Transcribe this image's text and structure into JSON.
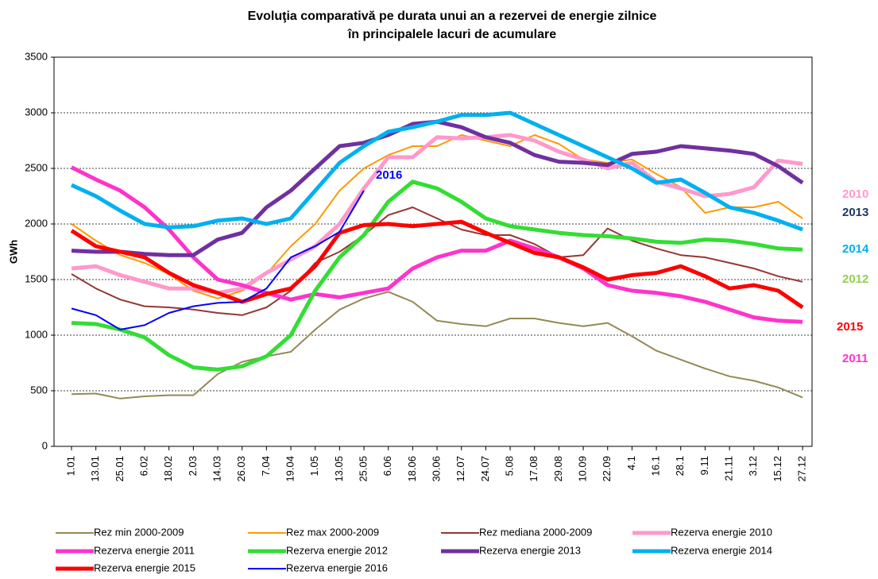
{
  "chart_data": {
    "type": "line",
    "title": "Evoluţia comparativă pe durata unui an a rezervei de energie zilnice",
    "subtitle": "în principalele lacuri de acumulare",
    "y_label": "GWh",
    "categories": [
      "1.01",
      "13.01",
      "25.01",
      "6.02",
      "18.02",
      "2.03",
      "14.03",
      "26.03",
      "7.04",
      "19.04",
      "1.05",
      "13.05",
      "25.05",
      "6.06",
      "18.06",
      "30.06",
      "12.07",
      "24.07",
      "5.08",
      "17.08",
      "29.08",
      "10.09",
      "22.09",
      "4.1",
      "16.1",
      "28.1",
      "9.11",
      "21.11",
      "3.12",
      "15.12",
      "27.12"
    ],
    "ylim": [
      0,
      3500
    ],
    "yticks": [
      0,
      500,
      1000,
      1500,
      2000,
      2500,
      3000,
      3500
    ],
    "grid": true,
    "series": [
      {
        "name": "Rez min 2000-2009",
        "color": "#948a54",
        "values": [
          470,
          475,
          430,
          450,
          460,
          460,
          650,
          760,
          810,
          850,
          1050,
          1230,
          1330,
          1390,
          1300,
          1130,
          1100,
          1080,
          1150,
          1150,
          1110,
          1080,
          1110,
          990,
          860,
          780,
          700,
          630,
          590,
          530,
          440
        ]
      },
      {
        "name": "Rez max 2000-2009",
        "color": "#ff9900",
        "values": [
          2000,
          1850,
          1720,
          1650,
          1550,
          1400,
          1330,
          1400,
          1550,
          1800,
          2000,
          2300,
          2500,
          2620,
          2700,
          2700,
          2800,
          2750,
          2700,
          2800,
          2720,
          2580,
          2550,
          2580,
          2450,
          2330,
          2100,
          2150,
          2150,
          2200,
          2050
        ]
      },
      {
        "name": "Rez mediana 2000-2009",
        "color": "#953735",
        "values": [
          1550,
          1420,
          1320,
          1260,
          1250,
          1230,
          1200,
          1180,
          1250,
          1400,
          1650,
          1750,
          1900,
          2080,
          2150,
          2050,
          1950,
          1900,
          1900,
          1820,
          1700,
          1720,
          1960,
          1850,
          1780,
          1720,
          1700,
          1650,
          1600,
          1530,
          1480
        ]
      },
      {
        "name": "Rezerva energie 2010",
        "color": "#ff99cc",
        "values": [
          1600,
          1620,
          1540,
          1480,
          1420,
          1420,
          1380,
          1420,
          1560,
          1680,
          1800,
          2000,
          2320,
          2600,
          2600,
          2780,
          2770,
          2780,
          2800,
          2750,
          2650,
          2580,
          2500,
          2550,
          2380,
          2320,
          2250,
          2270,
          2330,
          2570,
          2540
        ]
      },
      {
        "name": "Rezerva energie 2011",
        "color": "#ff33cc",
        "values": [
          2510,
          2400,
          2300,
          2150,
          1950,
          1700,
          1500,
          1450,
          1380,
          1320,
          1370,
          1340,
          1380,
          1420,
          1600,
          1700,
          1760,
          1760,
          1850,
          1780,
          1700,
          1600,
          1450,
          1400,
          1380,
          1350,
          1300,
          1230,
          1160,
          1130,
          1120
        ]
      },
      {
        "name": "Rezerva energie 2012",
        "color": "#33dd33",
        "values": [
          1110,
          1100,
          1050,
          980,
          820,
          710,
          690,
          720,
          810,
          1000,
          1400,
          1700,
          1900,
          2200,
          2380,
          2320,
          2200,
          2050,
          1980,
          1950,
          1920,
          1900,
          1890,
          1870,
          1840,
          1830,
          1860,
          1850,
          1820,
          1780,
          1770
        ]
      },
      {
        "name": "Rezerva energie 2013",
        "color": "#7030a0",
        "values": [
          1760,
          1750,
          1750,
          1730,
          1720,
          1720,
          1860,
          1920,
          2150,
          2300,
          2500,
          2700,
          2730,
          2800,
          2900,
          2920,
          2870,
          2780,
          2730,
          2620,
          2560,
          2550,
          2530,
          2630,
          2650,
          2700,
          2680,
          2660,
          2630,
          2520,
          2370
        ]
      },
      {
        "name": "Rezerva energie 2014",
        "color": "#00b0f0",
        "values": [
          2350,
          2250,
          2120,
          2000,
          1970,
          1980,
          2030,
          2050,
          2000,
          2050,
          2300,
          2550,
          2700,
          2830,
          2870,
          2920,
          2980,
          2980,
          3000,
          2900,
          2800,
          2700,
          2600,
          2500,
          2370,
          2400,
          2280,
          2150,
          2100,
          2030,
          1950
        ]
      },
      {
        "name": "Rezerva energie 2015",
        "color": "#ff0000",
        "values": [
          1940,
          1800,
          1750,
          1700,
          1560,
          1450,
          1380,
          1300,
          1370,
          1420,
          1620,
          1920,
          1990,
          2000,
          1980,
          2000,
          2020,
          1920,
          1830,
          1740,
          1700,
          1610,
          1500,
          1540,
          1560,
          1620,
          1530,
          1420,
          1450,
          1400,
          1250
        ]
      },
      {
        "name": "Rezerva energie 2016",
        "color": "#0000ff",
        "values": [
          1240,
          1180,
          1050,
          1090,
          1200,
          1260,
          1290,
          1300,
          1420,
          1700,
          1800,
          1930,
          2300,
          null,
          null,
          null,
          null,
          null,
          null,
          null,
          null,
          null,
          null,
          null,
          null,
          null,
          null,
          null,
          null,
          null,
          null
        ]
      }
    ],
    "annotations": [
      {
        "text": "2016",
        "color": "#0000ff"
      },
      {
        "text": "2010",
        "color": "#ff99cc"
      },
      {
        "text": "2013",
        "color": "#1f3864"
      },
      {
        "text": "2014",
        "color": "#00b0f0"
      },
      {
        "text": "2012",
        "color": "#92d050"
      },
      {
        "text": "2015",
        "color": "#ff0000"
      },
      {
        "text": "2011",
        "color": "#ff33cc"
      }
    ]
  }
}
